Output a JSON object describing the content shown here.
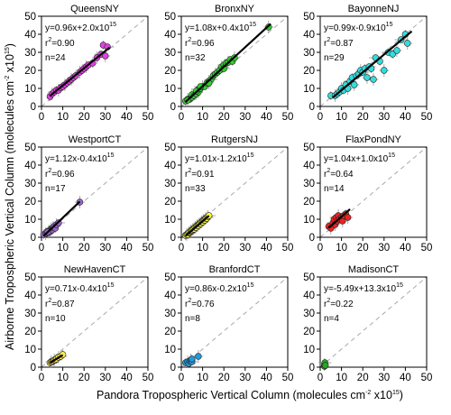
{
  "figure": {
    "xlabel_main": "Pandora Tropospheric Vertical Column (molecules cm",
    "xlabel_exp1": "-2",
    "xlabel_mid": " x10",
    "xlabel_exp2": "15",
    "xlabel_end": ")",
    "ylabel_main": "Airborne Tropospheric Vertical Column (molecules cm",
    "ylabel_exp1": "-2",
    "ylabel_mid": " x10",
    "ylabel_exp2": "15",
    "ylabel_end": ")"
  },
  "chart_data": [
    {
      "type": "scatter",
      "title": "QueensNY",
      "stats": {
        "eq_main": "y=0.96x+2.0x10",
        "eq_exp": "15",
        "r2_label": "r",
        "r2_exp": "2",
        "r2_value": "=0.90",
        "n": "n=24"
      },
      "color": "#e040e0",
      "fit": {
        "slope": 0.96,
        "intercept": 2.0,
        "x_range": [
          4,
          32
        ]
      },
      "points": [
        {
          "x": 4,
          "y": 5.5
        },
        {
          "x": 5,
          "y": 7
        },
        {
          "x": 6,
          "y": 8
        },
        {
          "x": 7,
          "y": 9
        },
        {
          "x": 8,
          "y": 9
        },
        {
          "x": 9,
          "y": 10.5
        },
        {
          "x": 10,
          "y": 11
        },
        {
          "x": 11,
          "y": 12
        },
        {
          "x": 12,
          "y": 13
        },
        {
          "x": 13,
          "y": 14
        },
        {
          "x": 14,
          "y": 15
        },
        {
          "x": 15,
          "y": 16
        },
        {
          "x": 16,
          "y": 17
        },
        {
          "x": 18,
          "y": 19
        },
        {
          "x": 19,
          "y": 20
        },
        {
          "x": 20,
          "y": 21
        },
        {
          "x": 21,
          "y": 22
        },
        {
          "x": 22,
          "y": 23
        },
        {
          "x": 24,
          "y": 24
        },
        {
          "x": 26,
          "y": 27
        },
        {
          "x": 28,
          "y": 29
        },
        {
          "x": 29,
          "y": 34
        },
        {
          "x": 30,
          "y": 28
        },
        {
          "x": 31,
          "y": 33
        }
      ],
      "xlim": [
        0,
        50
      ],
      "ylim": [
        0,
        50
      ],
      "xticks": [
        0,
        10,
        20,
        30,
        40,
        50
      ],
      "yticks": [
        0,
        10,
        20,
        30,
        40,
        50
      ],
      "xlabel": "",
      "ylabel": ""
    },
    {
      "type": "scatter",
      "title": "BronxNY",
      "stats": {
        "eq_main": "y=1.08x+0.4x10",
        "eq_exp": "15",
        "r2_label": "r",
        "r2_exp": "2",
        "r2_value": "=0.96",
        "n": "n=32"
      },
      "color": "#33cc33",
      "fit": {
        "slope": 1.08,
        "intercept": 0.4,
        "x_range": [
          2,
          42
        ]
      },
      "points": [
        {
          "x": 2,
          "y": 3
        },
        {
          "x": 3,
          "y": 4
        },
        {
          "x": 4,
          "y": 4
        },
        {
          "x": 5,
          "y": 5
        },
        {
          "x": 5,
          "y": 6.5
        },
        {
          "x": 6,
          "y": 6
        },
        {
          "x": 7,
          "y": 7
        },
        {
          "x": 8,
          "y": 8
        },
        {
          "x": 8,
          "y": 9.5
        },
        {
          "x": 9,
          "y": 10
        },
        {
          "x": 10,
          "y": 11
        },
        {
          "x": 11,
          "y": 11
        },
        {
          "x": 12,
          "y": 13
        },
        {
          "x": 13,
          "y": 14
        },
        {
          "x": 14,
          "y": 15
        },
        {
          "x": 15,
          "y": 17
        },
        {
          "x": 16,
          "y": 18
        },
        {
          "x": 17,
          "y": 19
        },
        {
          "x": 18,
          "y": 20
        },
        {
          "x": 19,
          "y": 22
        },
        {
          "x": 20,
          "y": 23
        },
        {
          "x": 21,
          "y": 24
        },
        {
          "x": 22,
          "y": 24.5
        },
        {
          "x": 23,
          "y": 26
        },
        {
          "x": 24,
          "y": 25
        },
        {
          "x": 25,
          "y": 27
        },
        {
          "x": 9,
          "y": 11
        },
        {
          "x": 7,
          "y": 8.5
        },
        {
          "x": 13,
          "y": 13
        },
        {
          "x": 20,
          "y": 21
        },
        {
          "x": 3,
          "y": 3.5
        },
        {
          "x": 41,
          "y": 44
        }
      ],
      "xlim": [
        0,
        50
      ],
      "ylim": [
        0,
        50
      ],
      "xticks": [
        0,
        10,
        20,
        30,
        40,
        50
      ],
      "yticks": [
        0,
        10,
        20,
        30,
        40,
        50
      ],
      "xlabel": "",
      "ylabel": ""
    },
    {
      "type": "scatter",
      "title": "BayonneNJ",
      "stats": {
        "eq_main": "y=0.99x-0.9x10",
        "eq_exp": "15",
        "r2_label": "r",
        "r2_exp": "2",
        "r2_value": "=0.87",
        "n": "n=29"
      },
      "color": "#33dddd",
      "fit": {
        "slope": 0.99,
        "intercept": -0.9,
        "x_range": [
          6,
          43
        ]
      },
      "points": [
        {
          "x": 5,
          "y": 6
        },
        {
          "x": 7,
          "y": 6
        },
        {
          "x": 8,
          "y": 7
        },
        {
          "x": 9,
          "y": 8
        },
        {
          "x": 10,
          "y": 10
        },
        {
          "x": 11,
          "y": 9
        },
        {
          "x": 12,
          "y": 12
        },
        {
          "x": 13,
          "y": 10
        },
        {
          "x": 14,
          "y": 14
        },
        {
          "x": 15,
          "y": 16
        },
        {
          "x": 16,
          "y": 12
        },
        {
          "x": 17,
          "y": 17
        },
        {
          "x": 18,
          "y": 18
        },
        {
          "x": 19,
          "y": 20
        },
        {
          "x": 20,
          "y": 19
        },
        {
          "x": 21,
          "y": 21
        },
        {
          "x": 22,
          "y": 16
        },
        {
          "x": 23,
          "y": 22
        },
        {
          "x": 24,
          "y": 21
        },
        {
          "x": 25,
          "y": 15
        },
        {
          "x": 26,
          "y": 27
        },
        {
          "x": 28,
          "y": 25
        },
        {
          "x": 30,
          "y": 20
        },
        {
          "x": 32,
          "y": 30
        },
        {
          "x": 34,
          "y": 29
        },
        {
          "x": 36,
          "y": 31
        },
        {
          "x": 38,
          "y": 37
        },
        {
          "x": 40,
          "y": 40
        },
        {
          "x": 41,
          "y": 35
        }
      ],
      "xlim": [
        0,
        50
      ],
      "ylim": [
        0,
        50
      ],
      "xticks": [
        0,
        10,
        20,
        30,
        40,
        50
      ],
      "yticks": [
        0,
        10,
        20,
        30,
        40,
        50
      ],
      "xlabel": "",
      "ylabel": ""
    },
    {
      "type": "scatter",
      "title": "WestportCT",
      "stats": {
        "eq_main": "y=1.12x-0.4x10",
        "eq_exp": "15",
        "r2_label": "r",
        "r2_exp": "2",
        "r2_value": "=0.96",
        "n": "n=17"
      },
      "color": "#9966cc",
      "fit": {
        "slope": 1.12,
        "intercept": -0.4,
        "x_range": [
          1,
          18
        ]
      },
      "points": [
        {
          "x": 1,
          "y": 1.5
        },
        {
          "x": 2,
          "y": 2
        },
        {
          "x": 2.5,
          "y": 3
        },
        {
          "x": 3,
          "y": 2.5
        },
        {
          "x": 3.5,
          "y": 3.5
        },
        {
          "x": 4,
          "y": 4
        },
        {
          "x": 4,
          "y": 3
        },
        {
          "x": 4.5,
          "y": 4.5
        },
        {
          "x": 5,
          "y": 5
        },
        {
          "x": 5,
          "y": 4
        },
        {
          "x": 5.5,
          "y": 5.5
        },
        {
          "x": 6,
          "y": 6
        },
        {
          "x": 6.5,
          "y": 5
        },
        {
          "x": 7,
          "y": 7
        },
        {
          "x": 8,
          "y": 8
        },
        {
          "x": 3,
          "y": 3
        },
        {
          "x": 18,
          "y": 19.5
        }
      ],
      "xlim": [
        0,
        50
      ],
      "ylim": [
        0,
        50
      ],
      "xticks": [
        0,
        10,
        20,
        30,
        40,
        50
      ],
      "yticks": [
        0,
        10,
        20,
        30,
        40,
        50
      ],
      "xlabel": "",
      "ylabel": ""
    },
    {
      "type": "scatter",
      "title": "RutgersNJ",
      "stats": {
        "eq_main": "y=1.01x-1.2x10",
        "eq_exp": "15",
        "r2_label": "r",
        "r2_exp": "2",
        "r2_value": "=0.91",
        "n": "n=33"
      },
      "color": "#ffff33",
      "fit": {
        "slope": 1.01,
        "intercept": -1.2,
        "x_range": [
          2,
          13
        ]
      },
      "points": [
        {
          "x": 2,
          "y": 1
        },
        {
          "x": 2.5,
          "y": 1.5
        },
        {
          "x": 3,
          "y": 2
        },
        {
          "x": 3,
          "y": 1.5
        },
        {
          "x": 3.5,
          "y": 2.5
        },
        {
          "x": 4,
          "y": 2.5
        },
        {
          "x": 4,
          "y": 3
        },
        {
          "x": 4.5,
          "y": 3.5
        },
        {
          "x": 5,
          "y": 3.5
        },
        {
          "x": 5,
          "y": 4
        },
        {
          "x": 5.5,
          "y": 4.5
        },
        {
          "x": 6,
          "y": 5
        },
        {
          "x": 6,
          "y": 4.5
        },
        {
          "x": 6.5,
          "y": 5.5
        },
        {
          "x": 7,
          "y": 6
        },
        {
          "x": 7,
          "y": 5.5
        },
        {
          "x": 7.5,
          "y": 6.5
        },
        {
          "x": 8,
          "y": 7
        },
        {
          "x": 8,
          "y": 6.5
        },
        {
          "x": 8.5,
          "y": 7.5
        },
        {
          "x": 9,
          "y": 8
        },
        {
          "x": 9,
          "y": 7.5
        },
        {
          "x": 9.5,
          "y": 8.5
        },
        {
          "x": 10,
          "y": 9
        },
        {
          "x": 10,
          "y": 8.5
        },
        {
          "x": 10.5,
          "y": 9.5
        },
        {
          "x": 11,
          "y": 10
        },
        {
          "x": 11,
          "y": 9.5
        },
        {
          "x": 11.5,
          "y": 10.5
        },
        {
          "x": 12,
          "y": 11
        },
        {
          "x": 12,
          "y": 10.5
        },
        {
          "x": 12.5,
          "y": 11.5
        },
        {
          "x": 13,
          "y": 12
        }
      ],
      "xlim": [
        0,
        50
      ],
      "ylim": [
        0,
        50
      ],
      "xticks": [
        0,
        10,
        20,
        30,
        40,
        50
      ],
      "yticks": [
        0,
        10,
        20,
        30,
        40,
        50
      ],
      "xlabel": "",
      "ylabel": ""
    },
    {
      "type": "scatter",
      "title": "FlaxPondNY",
      "stats": {
        "eq_main": "y=1.04x+1.0x10",
        "eq_exp": "15",
        "r2_label": "r",
        "r2_exp": "2",
        "r2_value": "=0.64",
        "n": "n=14"
      },
      "color": "#ee2222",
      "fit": {
        "slope": 1.04,
        "intercept": 1.0,
        "x_range": [
          4,
          14
        ]
      },
      "points": [
        {
          "x": 4,
          "y": 6
        },
        {
          "x": 5,
          "y": 5
        },
        {
          "x": 6,
          "y": 8
        },
        {
          "x": 6.5,
          "y": 10
        },
        {
          "x": 7,
          "y": 7
        },
        {
          "x": 7.5,
          "y": 11
        },
        {
          "x": 8,
          "y": 9
        },
        {
          "x": 8.5,
          "y": 12
        },
        {
          "x": 9,
          "y": 10
        },
        {
          "x": 10,
          "y": 11
        },
        {
          "x": 10.5,
          "y": 9
        },
        {
          "x": 11,
          "y": 12
        },
        {
          "x": 12,
          "y": 13
        },
        {
          "x": 13,
          "y": 11
        }
      ],
      "xlim": [
        0,
        50
      ],
      "ylim": [
        0,
        50
      ],
      "xticks": [
        0,
        10,
        20,
        30,
        40,
        50
      ],
      "yticks": [
        0,
        10,
        20,
        30,
        40,
        50
      ],
      "xlabel": "",
      "ylabel": ""
    },
    {
      "type": "scatter",
      "title": "NewHavenCT",
      "stats": {
        "eq_main": "y=0.71x-0.4x10",
        "eq_exp": "15",
        "r2_label": "r",
        "r2_exp": "2",
        "r2_value": "=0.87",
        "n": "n=10"
      },
      "color": "#ffee44",
      "fit": {
        "slope": 0.71,
        "intercept": -0.4,
        "x_range": [
          4,
          10
        ]
      },
      "points": [
        {
          "x": 4,
          "y": 2.5
        },
        {
          "x": 4.5,
          "y": 3
        },
        {
          "x": 5,
          "y": 3
        },
        {
          "x": 5.5,
          "y": 3.5
        },
        {
          "x": 6,
          "y": 4
        },
        {
          "x": 6.5,
          "y": 4
        },
        {
          "x": 7,
          "y": 4.5
        },
        {
          "x": 8,
          "y": 5.5
        },
        {
          "x": 9,
          "y": 6
        },
        {
          "x": 10,
          "y": 7
        }
      ],
      "xlim": [
        0,
        50
      ],
      "ylim": [
        0,
        50
      ],
      "xticks": [
        0,
        10,
        20,
        30,
        40,
        50
      ],
      "yticks": [
        0,
        10,
        20,
        30,
        40,
        50
      ],
      "xlabel": "",
      "ylabel": ""
    },
    {
      "type": "scatter",
      "title": "BranfordCT",
      "stats": {
        "eq_main": "y=0.86x-0.2x10",
        "eq_exp": "15",
        "r2_label": "r",
        "r2_exp": "2",
        "r2_value": "=0.76",
        "n": "n=8"
      },
      "color": "#2299dd",
      "fit": null,
      "points": [
        {
          "x": 2,
          "y": 2.5
        },
        {
          "x": 3,
          "y": 3
        },
        {
          "x": 3.5,
          "y": 2
        },
        {
          "x": 4,
          "y": 3.5
        },
        {
          "x": 4.5,
          "y": 4
        },
        {
          "x": 5,
          "y": 3
        },
        {
          "x": 5,
          "y": 4.5
        },
        {
          "x": 8,
          "y": 6
        }
      ],
      "xlim": [
        0,
        50
      ],
      "ylim": [
        0,
        50
      ],
      "xticks": [
        0,
        10,
        20,
        30,
        40,
        50
      ],
      "yticks": [
        0,
        10,
        20,
        30,
        40,
        50
      ],
      "xlabel": "",
      "ylabel": ""
    },
    {
      "type": "scatter",
      "title": "MadisonCT",
      "stats": {
        "eq_main": "y=-5.49x+13.3x10",
        "eq_exp": "15",
        "r2_label": "r",
        "r2_exp": "2",
        "r2_value": "=0.22",
        "n": "n=4"
      },
      "color": "#22aa22",
      "fit": null,
      "points": [
        {
          "x": 2,
          "y": 0.5
        },
        {
          "x": 2,
          "y": 1.5
        },
        {
          "x": 2.2,
          "y": 2.5
        },
        {
          "x": 2.4,
          "y": 1
        }
      ],
      "xlim": [
        0,
        50
      ],
      "ylim": [
        0,
        50
      ],
      "xticks": [
        0,
        10,
        20,
        30,
        40,
        50
      ],
      "yticks": [
        0,
        10,
        20,
        30,
        40,
        50
      ],
      "xlabel": "",
      "ylabel": ""
    }
  ]
}
